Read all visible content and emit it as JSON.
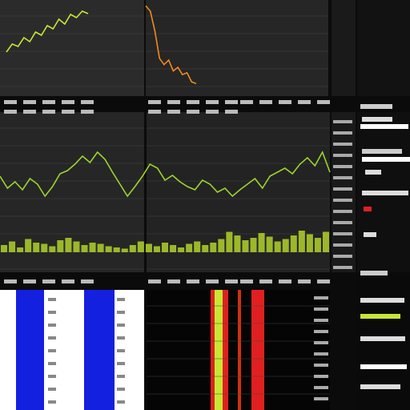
{
  "panels": [
    {
      "type": "line",
      "color": "#c8e632",
      "ylim": [
        0,
        100
      ],
      "values": [
        45,
        55,
        52,
        63,
        58,
        70,
        66,
        78,
        74,
        86,
        80,
        92,
        88,
        96,
        93
      ]
    },
    {
      "type": "line",
      "color": "#f08a1c",
      "ylim": [
        0,
        100
      ],
      "values": [
        98,
        92,
        70,
        40,
        33,
        38,
        26,
        30,
        22,
        24,
        14,
        12
      ]
    },
    {
      "type": "line",
      "color": "#9cd62a",
      "ylim": [
        0,
        100
      ],
      "values": [
        55,
        40,
        48,
        38,
        52,
        45,
        30,
        42,
        58,
        62,
        70,
        80,
        72,
        85,
        76,
        60,
        45,
        30,
        42,
        55,
        70,
        65,
        50,
        56,
        48,
        42,
        38,
        50,
        45,
        35,
        40,
        30,
        38,
        45,
        52,
        40,
        55,
        60,
        65,
        58,
        70,
        78,
        68,
        85,
        60
      ]
    },
    {
      "type": "bar",
      "color": "#9cb82a",
      "ylim": [
        0,
        100
      ],
      "values": [
        30,
        45,
        20,
        55,
        40,
        35,
        25,
        50,
        60,
        45,
        30,
        40,
        35,
        25,
        20,
        15,
        30,
        45,
        35,
        25,
        40,
        30,
        20,
        35,
        45,
        30,
        40,
        55,
        85,
        70,
        50,
        60,
        80,
        65,
        45,
        55,
        70,
        90,
        75,
        60,
        85
      ]
    }
  ]
}
